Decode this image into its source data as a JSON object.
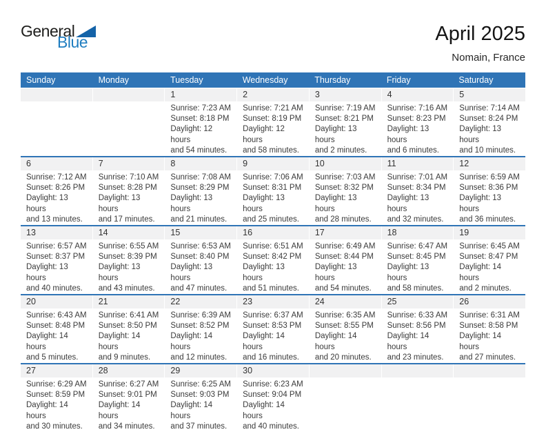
{
  "logo": {
    "part1": "General",
    "part2": "Blue"
  },
  "title": "April 2025",
  "subtitle": "Nomain, France",
  "weekday_headers": [
    "Sunday",
    "Monday",
    "Tuesday",
    "Wednesday",
    "Thursday",
    "Friday",
    "Saturday"
  ],
  "labels": {
    "sunrise": "Sunrise:",
    "sunset": "Sunset:",
    "daylight": "Daylight:"
  },
  "colors": {
    "header_blue": "#2F74B6",
    "row_border_blue": "#2F74B6",
    "stripe_gray": "#F1F1F2",
    "logo_blue": "#1F7DC0",
    "logo_triangle_blue": "#1463A8"
  },
  "weeks": [
    [
      null,
      null,
      {
        "day": "1",
        "sunrise": "7:23 AM",
        "sunset": "8:18 PM",
        "daylight_hours": "12 hours",
        "daylight_minutes": "and 54 minutes."
      },
      {
        "day": "2",
        "sunrise": "7:21 AM",
        "sunset": "8:19 PM",
        "daylight_hours": "12 hours",
        "daylight_minutes": "and 58 minutes."
      },
      {
        "day": "3",
        "sunrise": "7:19 AM",
        "sunset": "8:21 PM",
        "daylight_hours": "13 hours",
        "daylight_minutes": "and 2 minutes."
      },
      {
        "day": "4",
        "sunrise": "7:16 AM",
        "sunset": "8:23 PM",
        "daylight_hours": "13 hours",
        "daylight_minutes": "and 6 minutes."
      },
      {
        "day": "5",
        "sunrise": "7:14 AM",
        "sunset": "8:24 PM",
        "daylight_hours": "13 hours",
        "daylight_minutes": "and 10 minutes."
      }
    ],
    [
      {
        "day": "6",
        "sunrise": "7:12 AM",
        "sunset": "8:26 PM",
        "daylight_hours": "13 hours",
        "daylight_minutes": "and 13 minutes."
      },
      {
        "day": "7",
        "sunrise": "7:10 AM",
        "sunset": "8:28 PM",
        "daylight_hours": "13 hours",
        "daylight_minutes": "and 17 minutes."
      },
      {
        "day": "8",
        "sunrise": "7:08 AM",
        "sunset": "8:29 PM",
        "daylight_hours": "13 hours",
        "daylight_minutes": "and 21 minutes."
      },
      {
        "day": "9",
        "sunrise": "7:06 AM",
        "sunset": "8:31 PM",
        "daylight_hours": "13 hours",
        "daylight_minutes": "and 25 minutes."
      },
      {
        "day": "10",
        "sunrise": "7:03 AM",
        "sunset": "8:32 PM",
        "daylight_hours": "13 hours",
        "daylight_minutes": "and 28 minutes."
      },
      {
        "day": "11",
        "sunrise": "7:01 AM",
        "sunset": "8:34 PM",
        "daylight_hours": "13 hours",
        "daylight_minutes": "and 32 minutes."
      },
      {
        "day": "12",
        "sunrise": "6:59 AM",
        "sunset": "8:36 PM",
        "daylight_hours": "13 hours",
        "daylight_minutes": "and 36 minutes."
      }
    ],
    [
      {
        "day": "13",
        "sunrise": "6:57 AM",
        "sunset": "8:37 PM",
        "daylight_hours": "13 hours",
        "daylight_minutes": "and 40 minutes."
      },
      {
        "day": "14",
        "sunrise": "6:55 AM",
        "sunset": "8:39 PM",
        "daylight_hours": "13 hours",
        "daylight_minutes": "and 43 minutes."
      },
      {
        "day": "15",
        "sunrise": "6:53 AM",
        "sunset": "8:40 PM",
        "daylight_hours": "13 hours",
        "daylight_minutes": "and 47 minutes."
      },
      {
        "day": "16",
        "sunrise": "6:51 AM",
        "sunset": "8:42 PM",
        "daylight_hours": "13 hours",
        "daylight_minutes": "and 51 minutes."
      },
      {
        "day": "17",
        "sunrise": "6:49 AM",
        "sunset": "8:44 PM",
        "daylight_hours": "13 hours",
        "daylight_minutes": "and 54 minutes."
      },
      {
        "day": "18",
        "sunrise": "6:47 AM",
        "sunset": "8:45 PM",
        "daylight_hours": "13 hours",
        "daylight_minutes": "and 58 minutes."
      },
      {
        "day": "19",
        "sunrise": "6:45 AM",
        "sunset": "8:47 PM",
        "daylight_hours": "14 hours",
        "daylight_minutes": "and 2 minutes."
      }
    ],
    [
      {
        "day": "20",
        "sunrise": "6:43 AM",
        "sunset": "8:48 PM",
        "daylight_hours": "14 hours",
        "daylight_minutes": "and 5 minutes."
      },
      {
        "day": "21",
        "sunrise": "6:41 AM",
        "sunset": "8:50 PM",
        "daylight_hours": "14 hours",
        "daylight_minutes": "and 9 minutes."
      },
      {
        "day": "22",
        "sunrise": "6:39 AM",
        "sunset": "8:52 PM",
        "daylight_hours": "14 hours",
        "daylight_minutes": "and 12 minutes."
      },
      {
        "day": "23",
        "sunrise": "6:37 AM",
        "sunset": "8:53 PM",
        "daylight_hours": "14 hours",
        "daylight_minutes": "and 16 minutes."
      },
      {
        "day": "24",
        "sunrise": "6:35 AM",
        "sunset": "8:55 PM",
        "daylight_hours": "14 hours",
        "daylight_minutes": "and 20 minutes."
      },
      {
        "day": "25",
        "sunrise": "6:33 AM",
        "sunset": "8:56 PM",
        "daylight_hours": "14 hours",
        "daylight_minutes": "and 23 minutes."
      },
      {
        "day": "26",
        "sunrise": "6:31 AM",
        "sunset": "8:58 PM",
        "daylight_hours": "14 hours",
        "daylight_minutes": "and 27 minutes."
      }
    ],
    [
      {
        "day": "27",
        "sunrise": "6:29 AM",
        "sunset": "8:59 PM",
        "daylight_hours": "14 hours",
        "daylight_minutes": "and 30 minutes."
      },
      {
        "day": "28",
        "sunrise": "6:27 AM",
        "sunset": "9:01 PM",
        "daylight_hours": "14 hours",
        "daylight_minutes": "and 34 minutes."
      },
      {
        "day": "29",
        "sunrise": "6:25 AM",
        "sunset": "9:03 PM",
        "daylight_hours": "14 hours",
        "daylight_minutes": "and 37 minutes."
      },
      {
        "day": "30",
        "sunrise": "6:23 AM",
        "sunset": "9:04 PM",
        "daylight_hours": "14 hours",
        "daylight_minutes": "and 40 minutes."
      },
      null,
      null,
      null
    ]
  ]
}
